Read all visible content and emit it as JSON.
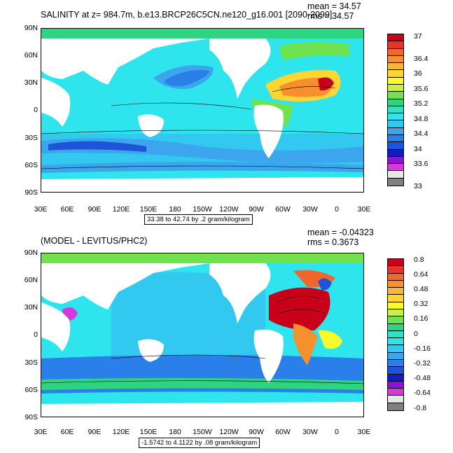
{
  "top": {
    "title": "SALINITY at z= 984.7m, b.e13.BRCP26C5CN.ne120_g16.001 [2090-2099]",
    "mean": "mean = 34.57",
    "rms": "rms = 34.57",
    "info": "33.38 to 42.74 by .2 gram/kilogram",
    "colorbar_labels": [
      "37",
      "36.4",
      "36",
      "35.6",
      "35.2",
      "34.8",
      "34.4",
      "34",
      "33.6",
      "33"
    ],
    "colorbar_colors": [
      "#c8001a",
      "#e8342b",
      "#f0662c",
      "#f6902f",
      "#fbb63a",
      "#fed634",
      "#f9f92e",
      "#c9f04a",
      "#6ee24f",
      "#2ed47f",
      "#33e0c2",
      "#2ee5ee",
      "#33c8f0",
      "#3ba6ee",
      "#2a80e8",
      "#1e55d8",
      "#0f1fc8",
      "#8a14d0",
      "#d43ad8",
      "#e6e6e6",
      "#808080"
    ]
  },
  "bottom": {
    "title": "(MODEL - LEVITUS/PHC2)",
    "mean": "mean = -0.04323",
    "rms": "rms = 0.3673",
    "info": "-1.5742 to 4.1122 by .08 gram/kilogram",
    "colorbar_labels": [
      "0.8",
      "0.64",
      "0.48",
      "0.32",
      "0.16",
      "0",
      "-0.16",
      "-0.32",
      "-0.48",
      "-0.64",
      "-0.8"
    ],
    "colorbar_colors": [
      "#c8001a",
      "#e8342b",
      "#f0662c",
      "#f6902f",
      "#fbb63a",
      "#fed634",
      "#f9f92e",
      "#c9f04a",
      "#6ee24f",
      "#2ed47f",
      "#33e0c2",
      "#2ee5ee",
      "#33c8f0",
      "#3ba6ee",
      "#2a80e8",
      "#1e55d8",
      "#0f1fc8",
      "#8a14d0",
      "#d43ad8",
      "#e6e6e6",
      "#808080"
    ]
  },
  "axes": {
    "lat_labels": [
      "90N",
      "60N",
      "30N",
      "0",
      "30S",
      "60S",
      "90S"
    ],
    "lon_labels": [
      "30E",
      "60E",
      "90E",
      "120E",
      "150E",
      "180",
      "150W",
      "120W",
      "90W",
      "60W",
      "30W",
      "0",
      "30E"
    ]
  },
  "colors": {
    "land": "#ffffff",
    "pacific_top": "#2ee5ee",
    "pacific_core_top": "#3ba6ee",
    "atlantic_top": "#fbb63a",
    "pacific_bottom": "#33c8f0",
    "atlantic_bottom": "#c8001a",
    "southern_bottom": "#2a80e8"
  }
}
